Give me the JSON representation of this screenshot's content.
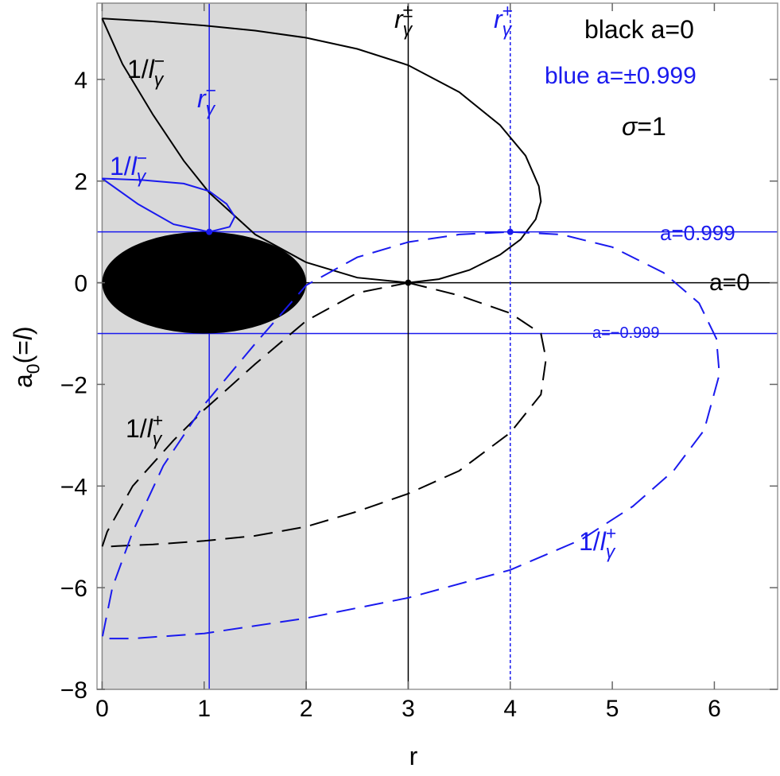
{
  "chart_data": {
    "type": "line",
    "xlim": [
      -0.05,
      6.62
    ],
    "ylim": [
      -8,
      5.5
    ],
    "xticks": [
      0,
      1,
      2,
      3,
      4,
      5,
      6
    ],
    "yticks": [
      {
        "value": -8,
        "label": "−8"
      },
      {
        "value": -6,
        "label": "−6"
      },
      {
        "value": -4,
        "label": "−4"
      },
      {
        "value": -2,
        "label": "−2"
      },
      0,
      2,
      4
    ],
    "xlabel": "r",
    "ylabel": [
      {
        "t": "a"
      },
      {
        "t": "0",
        "pos": "sub"
      },
      {
        "t": "(="
      },
      {
        "t": "l",
        "italic": true
      },
      {
        "t": ")"
      }
    ],
    "shade": {
      "x": [
        0,
        2
      ],
      "color": "#d9d9d9"
    },
    "ellipse": {
      "cx": 1,
      "cy": 0,
      "rx": 1,
      "ry": 1,
      "color": "#000000"
    },
    "vlines": [
      {
        "value": 1.05,
        "color": "#1a1aee",
        "style": "solid"
      },
      {
        "value": 3,
        "color": "#000000",
        "style": "solid"
      },
      {
        "value": 4,
        "color": "#1a1aee",
        "style": "dotted"
      }
    ],
    "hlines": [
      {
        "value": 1,
        "color": "#1a1aee"
      },
      {
        "value": 0,
        "color": "#000000"
      },
      {
        "value": -1,
        "color": "#1a1aee"
      }
    ],
    "series": [
      {
        "color": "#000000",
        "dashed": false,
        "x": [
          0,
          0.5,
          1,
          1.5,
          2,
          2.5,
          3,
          3.5,
          3.9,
          4.15,
          4.28,
          4.3,
          4.25,
          4.1,
          3.9,
          3.6,
          3.3,
          3,
          2.5,
          2,
          1.5,
          1.05,
          0.8,
          0.5,
          0.2,
          0
        ],
        "values": [
          5.2,
          5.14,
          5.06,
          4.96,
          4.82,
          4.6,
          4.28,
          3.75,
          3.1,
          2.5,
          1.9,
          1.6,
          1.25,
          0.85,
          0.55,
          0.25,
          0.07,
          0,
          0.1,
          0.4,
          0.95,
          1.77,
          2.4,
          3.3,
          4.3,
          5.2
        ]
      },
      {
        "color": "#000000",
        "dashed": true,
        "x": [
          3,
          3.5,
          4,
          4.3,
          4.35,
          4.3,
          4,
          3.5,
          3,
          2.5,
          2,
          1.5,
          1,
          0.5,
          0.15,
          0,
          0.05,
          0.3,
          0.7,
          1,
          1.5,
          2,
          2.5,
          3
        ],
        "values": [
          0,
          -0.25,
          -0.6,
          -1.0,
          -1.5,
          -2.2,
          -2.95,
          -3.7,
          -4.15,
          -4.5,
          -4.8,
          -4.98,
          -5.08,
          -5.15,
          -5.18,
          -5.2,
          -4.9,
          -4.0,
          -3.1,
          -2.5,
          -1.6,
          -0.75,
          -0.2,
          0
        ]
      },
      {
        "color": "#1a1aee",
        "dashed": false,
        "x": [
          0,
          0.4,
          0.8,
          1.05,
          1.22,
          1.3,
          1.25,
          1.05,
          0.7,
          0.35,
          0
        ],
        "values": [
          2.05,
          2.02,
          1.95,
          1.8,
          1.55,
          1.3,
          1.1,
          1.0,
          1.15,
          1.55,
          2.05
        ]
      },
      {
        "color": "#1a1aee",
        "dashed": true,
        "x": [
          4,
          4.5,
          5,
          5.5,
          5.85,
          6.02,
          6.05,
          5.9,
          5.6,
          5.2,
          4.7,
          4,
          3,
          2,
          1,
          0.3,
          0,
          0.1,
          0.3,
          0.6,
          1,
          1.5,
          2,
          2.5,
          3,
          3.5,
          4
        ],
        "values": [
          1,
          0.95,
          0.7,
          0.2,
          -0.4,
          -1.1,
          -1.8,
          -2.9,
          -3.7,
          -4.4,
          -5.05,
          -5.65,
          -6.2,
          -6.6,
          -6.9,
          -7.0,
          -7.0,
          -6.0,
          -4.9,
          -3.6,
          -2.4,
          -1.2,
          -0.05,
          0.5,
          0.8,
          0.95,
          1
        ]
      }
    ],
    "points": [
      {
        "x": 1.05,
        "y": 1,
        "color": "#1a1aee"
      },
      {
        "x": 3,
        "y": 0,
        "color": "#000000"
      },
      {
        "x": 4,
        "y": 1,
        "color": "#1a1aee"
      }
    ],
    "annotations": [
      {
        "color": "#000000",
        "parts": [
          {
            "t": "1/"
          },
          {
            "t": "l",
            "italic": true
          },
          {
            "t": "γ",
            "pos": "sub",
            "italic": true
          },
          {
            "t": "−",
            "pos": "sup"
          }
        ]
      },
      {
        "color": "#1a1aee",
        "parts": [
          {
            "t": "r",
            "italic": true
          },
          {
            "t": "γ",
            "pos": "sub",
            "italic": true
          },
          {
            "t": "−",
            "pos": "sup"
          }
        ]
      },
      {
        "color": "#1a1aee",
        "parts": [
          {
            "t": "1/"
          },
          {
            "t": "l",
            "italic": true
          },
          {
            "t": "γ",
            "pos": "sub",
            "italic": true
          },
          {
            "t": "−",
            "pos": "sup"
          }
        ]
      },
      {
        "color": "#000000",
        "parts": [
          {
            "t": "r",
            "italic": true
          },
          {
            "t": "γ",
            "pos": "sub",
            "italic": true
          },
          {
            "t": "±",
            "pos": "sup"
          }
        ]
      },
      {
        "color": "#1a1aee",
        "parts": [
          {
            "t": "r",
            "italic": true
          },
          {
            "t": "γ",
            "pos": "sub",
            "italic": true
          },
          {
            "t": "+",
            "pos": "sup"
          }
        ]
      },
      {
        "color": "#000000",
        "parts": [
          {
            "t": "1/"
          },
          {
            "t": "l",
            "italic": true
          },
          {
            "t": "γ",
            "pos": "sub",
            "italic": true
          },
          {
            "t": "+",
            "pos": "sup"
          }
        ]
      },
      {
        "color": "#1a1aee",
        "parts": [
          {
            "t": "1/"
          },
          {
            "t": "l",
            "italic": true
          },
          {
            "t": "γ",
            "pos": "sub",
            "italic": true
          },
          {
            "t": "+",
            "pos": "sup"
          }
        ]
      },
      {
        "color": "#000000",
        "parts": [
          {
            "t": "black a=0"
          }
        ]
      },
      {
        "color": "#1a1aee",
        "parts": [
          {
            "t": "blue a=±0.999"
          }
        ]
      },
      {
        "color": "#000000",
        "parts": [
          {
            "t": "σ",
            "italic": true
          },
          {
            "t": "=1"
          }
        ]
      },
      {
        "color": "#1a1aee",
        "parts": [
          {
            "t": "a=0.999"
          }
        ]
      },
      {
        "color": "#000000",
        "parts": [
          {
            "t": "a=0"
          }
        ]
      },
      {
        "color": "#1a1aee",
        "parts": [
          {
            "t": "a=−0.999"
          }
        ]
      }
    ]
  }
}
